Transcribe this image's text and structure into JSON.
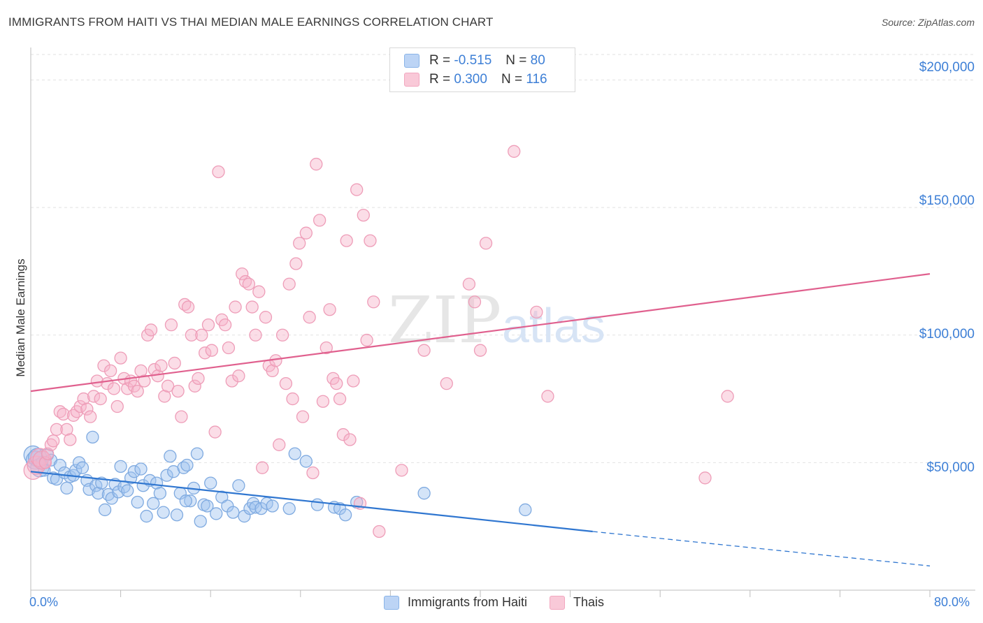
{
  "title": "IMMIGRANTS FROM HAITI VS THAI MEDIAN MALE EARNINGS CORRELATION CHART",
  "source": "Source: ZipAtlas.com",
  "legend": {
    "series": [
      {
        "r_label": "R =",
        "r_value": "-0.515",
        "n_label": "N =",
        "n_value": "80"
      },
      {
        "r_label": "R =",
        "r_value": "0.300",
        "n_label": "N =",
        "n_value": "116"
      }
    ]
  },
  "colors": {
    "haiti": "#8ab4e8",
    "haiti_line": "#2f76d0",
    "thai": "#f2a7bf",
    "thai_line": "#e0608e",
    "tick_label": "#3d7fd6"
  },
  "chart_data": {
    "type": "scatter",
    "title": "IMMIGRANTS FROM HAITI VS THAI MEDIAN MALE EARNINGS CORRELATION CHART",
    "xlabel": "",
    "ylabel": "Median Male Earnings",
    "xlim": [
      0,
      80
    ],
    "ylim": [
      0,
      210000
    ],
    "x_tick_labels": [
      "0.0%",
      "80.0%"
    ],
    "y_ticks": [
      50000,
      100000,
      150000,
      200000
    ],
    "y_tick_labels": [
      "$50,000",
      "$100,000",
      "$150,000",
      "$200,000"
    ],
    "grid": true,
    "legend_position": "top-center",
    "series": [
      {
        "name": "Immigrants from Haiti",
        "r": -0.515,
        "n": 80,
        "trend": {
          "x0": 0,
          "y0": 46500,
          "x1": 50,
          "y1": 23000,
          "dashed_to_x": 80,
          "dashed_to_y": 9500
        },
        "points": [
          [
            0.2,
            53000
          ],
          [
            0.4,
            51000
          ],
          [
            0.6,
            52000
          ],
          [
            0.8,
            48000
          ],
          [
            1.0,
            50000
          ],
          [
            1.2,
            47000
          ],
          [
            1.5,
            53000
          ],
          [
            1.8,
            51000
          ],
          [
            2.0,
            44000
          ],
          [
            2.3,
            43500
          ],
          [
            2.6,
            49000
          ],
          [
            3.0,
            46000
          ],
          [
            3.2,
            40000
          ],
          [
            3.5,
            44500
          ],
          [
            3.8,
            45000
          ],
          [
            4.0,
            47000
          ],
          [
            4.3,
            50000
          ],
          [
            4.6,
            48000
          ],
          [
            5.0,
            43000
          ],
          [
            5.2,
            39500
          ],
          [
            5.5,
            60000
          ],
          [
            5.8,
            41000
          ],
          [
            6.0,
            38000
          ],
          [
            6.3,
            42000
          ],
          [
            6.6,
            31500
          ],
          [
            6.9,
            37500
          ],
          [
            7.2,
            36000
          ],
          [
            7.5,
            41500
          ],
          [
            7.8,
            38500
          ],
          [
            8.0,
            48500
          ],
          [
            8.3,
            40500
          ],
          [
            8.6,
            39000
          ],
          [
            8.9,
            44000
          ],
          [
            9.2,
            46500
          ],
          [
            9.5,
            34500
          ],
          [
            9.8,
            47500
          ],
          [
            10.0,
            41000
          ],
          [
            10.3,
            29000
          ],
          [
            10.6,
            43000
          ],
          [
            10.9,
            34000
          ],
          [
            11.2,
            42000
          ],
          [
            11.5,
            38000
          ],
          [
            11.8,
            30500
          ],
          [
            12.1,
            45000
          ],
          [
            12.4,
            52500
          ],
          [
            12.7,
            46500
          ],
          [
            13.0,
            29500
          ],
          [
            13.3,
            38000
          ],
          [
            13.6,
            48000
          ],
          [
            13.9,
            49000
          ],
          [
            14.2,
            35000
          ],
          [
            14.5,
            40000
          ],
          [
            14.8,
            53500
          ],
          [
            15.1,
            27000
          ],
          [
            15.4,
            33500
          ],
          [
            15.7,
            33000
          ],
          [
            16.0,
            42000
          ],
          [
            16.5,
            30000
          ],
          [
            17.0,
            36500
          ],
          [
            17.5,
            33000
          ],
          [
            18.0,
            30500
          ],
          [
            18.5,
            41000
          ],
          [
            19.0,
            29000
          ],
          [
            19.5,
            32000
          ],
          [
            19.8,
            34000
          ],
          [
            20.0,
            32500
          ],
          [
            20.5,
            32000
          ],
          [
            21.0,
            34000
          ],
          [
            23.0,
            32000
          ],
          [
            23.5,
            53500
          ],
          [
            24.5,
            50500
          ],
          [
            27.0,
            32500
          ],
          [
            27.5,
            32000
          ],
          [
            28.0,
            29500
          ],
          [
            29.0,
            34500
          ],
          [
            35.0,
            38000
          ],
          [
            44.0,
            31500
          ],
          [
            25.5,
            33500
          ],
          [
            21.5,
            33000
          ],
          [
            13.8,
            35000
          ]
        ]
      },
      {
        "name": "Thais",
        "r": 0.3,
        "n": 116,
        "trend": {
          "x0": 0,
          "y0": 78000,
          "x1": 80,
          "y1": 124000
        },
        "points": [
          [
            0.2,
            47000
          ],
          [
            0.5,
            49000
          ],
          [
            0.8,
            52000
          ],
          [
            1.0,
            51000
          ],
          [
            1.3,
            50000
          ],
          [
            1.5,
            53500
          ],
          [
            1.8,
            57000
          ],
          [
            2.0,
            58500
          ],
          [
            2.3,
            63000
          ],
          [
            2.6,
            70000
          ],
          [
            2.9,
            69000
          ],
          [
            3.2,
            63000
          ],
          [
            3.5,
            59000
          ],
          [
            3.8,
            68500
          ],
          [
            4.1,
            70000
          ],
          [
            4.4,
            72000
          ],
          [
            4.7,
            75000
          ],
          [
            5.0,
            71000
          ],
          [
            5.3,
            68000
          ],
          [
            5.6,
            76000
          ],
          [
            5.9,
            82000
          ],
          [
            6.2,
            75000
          ],
          [
            6.5,
            88000
          ],
          [
            6.8,
            81000
          ],
          [
            7.1,
            86000
          ],
          [
            7.4,
            79000
          ],
          [
            7.7,
            72000
          ],
          [
            8.0,
            91000
          ],
          [
            8.3,
            83000
          ],
          [
            8.6,
            79000
          ],
          [
            8.9,
            82000
          ],
          [
            9.2,
            80000
          ],
          [
            9.5,
            78000
          ],
          [
            9.8,
            86000
          ],
          [
            10.1,
            82000
          ],
          [
            10.4,
            100000
          ],
          [
            10.7,
            102000
          ],
          [
            11.0,
            86500
          ],
          [
            11.3,
            84000
          ],
          [
            11.6,
            88000
          ],
          [
            11.9,
            76000
          ],
          [
            12.2,
            80000
          ],
          [
            12.5,
            104000
          ],
          [
            12.8,
            89000
          ],
          [
            13.1,
            78000
          ],
          [
            13.4,
            68000
          ],
          [
            13.7,
            112000
          ],
          [
            14.0,
            111000
          ],
          [
            14.3,
            100000
          ],
          [
            14.6,
            80000
          ],
          [
            14.9,
            83000
          ],
          [
            15.2,
            100000
          ],
          [
            15.5,
            93000
          ],
          [
            15.8,
            104000
          ],
          [
            16.1,
            94000
          ],
          [
            16.4,
            62000
          ],
          [
            16.7,
            164000
          ],
          [
            17.0,
            106000
          ],
          [
            17.3,
            104000
          ],
          [
            17.6,
            95000
          ],
          [
            17.9,
            82000
          ],
          [
            18.2,
            111000
          ],
          [
            18.5,
            84000
          ],
          [
            18.8,
            124000
          ],
          [
            19.1,
            121000
          ],
          [
            19.4,
            120000
          ],
          [
            19.7,
            111000
          ],
          [
            20.0,
            100000
          ],
          [
            20.3,
            117000
          ],
          [
            20.6,
            48000
          ],
          [
            20.9,
            107000
          ],
          [
            21.2,
            88000
          ],
          [
            21.5,
            86000
          ],
          [
            21.8,
            90000
          ],
          [
            22.1,
            57000
          ],
          [
            22.4,
            100000
          ],
          [
            22.7,
            81000
          ],
          [
            23.0,
            120000
          ],
          [
            23.3,
            75000
          ],
          [
            23.6,
            128000
          ],
          [
            23.9,
            136000
          ],
          [
            24.2,
            68000
          ],
          [
            24.5,
            140000
          ],
          [
            24.8,
            107000
          ],
          [
            25.1,
            46000
          ],
          [
            25.4,
            167000
          ],
          [
            25.7,
            145000
          ],
          [
            26.0,
            74000
          ],
          [
            26.3,
            95000
          ],
          [
            26.6,
            110000
          ],
          [
            26.9,
            83000
          ],
          [
            27.2,
            81000
          ],
          [
            27.5,
            75000
          ],
          [
            27.8,
            61000
          ],
          [
            28.1,
            137000
          ],
          [
            28.4,
            59000
          ],
          [
            28.7,
            82000
          ],
          [
            29.0,
            157000
          ],
          [
            29.3,
            34000
          ],
          [
            29.6,
            147000
          ],
          [
            29.9,
            98000
          ],
          [
            30.2,
            137000
          ],
          [
            30.5,
            113000
          ],
          [
            31.0,
            23000
          ],
          [
            33.0,
            47000
          ],
          [
            35.0,
            94000
          ],
          [
            37.0,
            81000
          ],
          [
            39.0,
            120000
          ],
          [
            39.5,
            113000
          ],
          [
            40.0,
            94000
          ],
          [
            40.5,
            136000
          ],
          [
            43.0,
            172000
          ],
          [
            45.0,
            109000
          ],
          [
            46.0,
            76000
          ],
          [
            60.0,
            44000
          ],
          [
            62.0,
            76000
          ]
        ]
      }
    ]
  },
  "bottom_legend": [
    {
      "label": "Immigrants from Haiti"
    },
    {
      "label": "Thais"
    }
  ]
}
